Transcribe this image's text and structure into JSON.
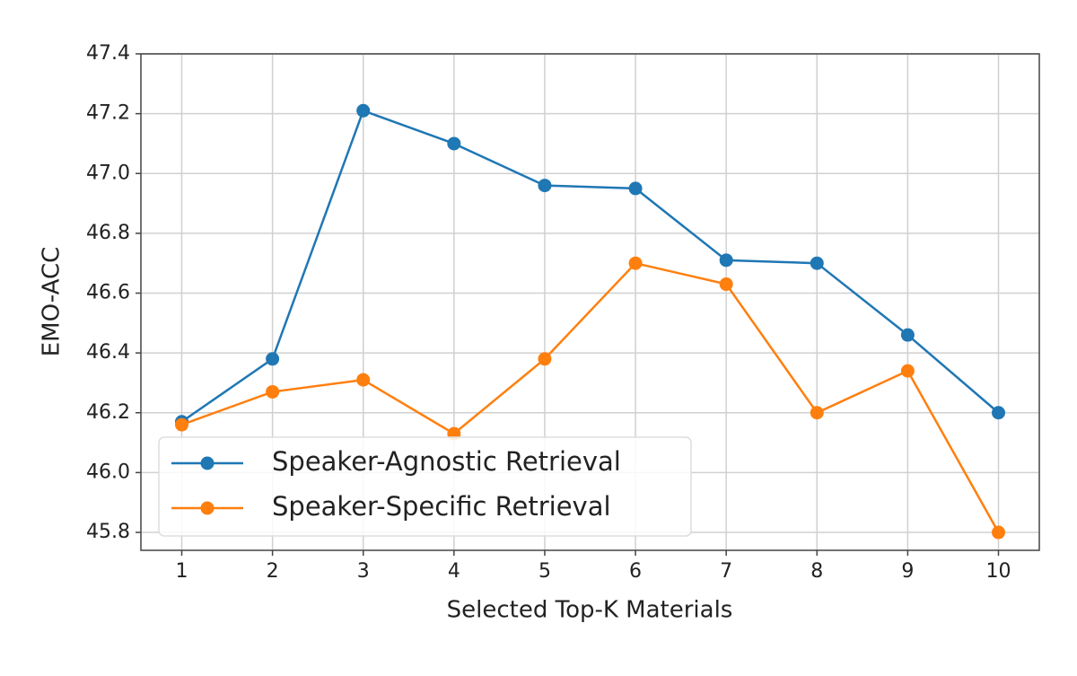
{
  "chart_data": {
    "type": "line",
    "x_label": "Selected Top-K Materials",
    "y_label": "EMO-ACC",
    "x": [
      1,
      2,
      3,
      4,
      5,
      6,
      7,
      8,
      9,
      10
    ],
    "series": [
      {
        "name": "Speaker-Agnostic Retrieval",
        "color": "#1f77b4",
        "values": [
          46.17,
          46.38,
          47.21,
          47.1,
          46.96,
          46.95,
          46.71,
          46.7,
          46.46,
          46.2
        ]
      },
      {
        "name": "Speaker-Specific Retrieval",
        "color": "#ff7f0e",
        "values": [
          46.16,
          46.27,
          46.31,
          46.13,
          46.38,
          46.7,
          46.63,
          46.2,
          46.34,
          45.8
        ]
      }
    ],
    "xlim": [
      0.55,
      10.45
    ],
    "ylim": [
      45.74,
      47.4
    ],
    "xticks": [
      1,
      2,
      3,
      4,
      5,
      6,
      7,
      8,
      9,
      10
    ],
    "yticks": [
      45.8,
      {
        "value": 46.0,
        "label": "46.0"
      },
      46.2,
      46.4,
      46.6,
      46.8,
      {
        "value": 47.0,
        "label": "47.0"
      },
      47.2,
      47.4
    ],
    "grid": true,
    "legend": "lower left"
  }
}
